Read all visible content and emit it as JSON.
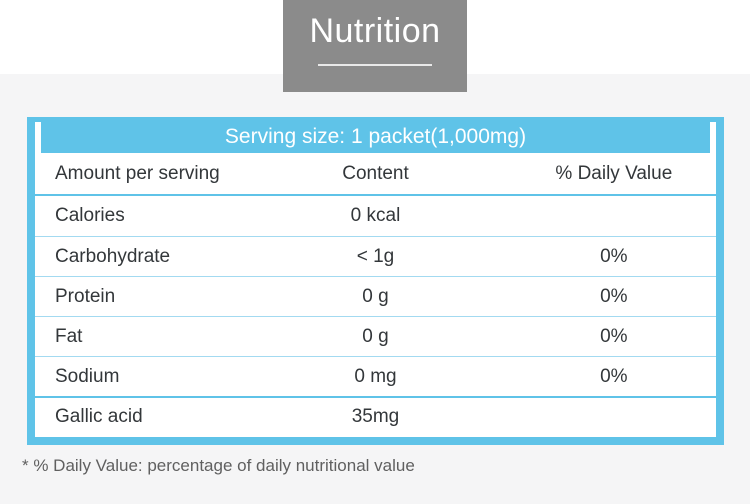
{
  "page": {
    "title": "Nutrition",
    "footnote": "* % Daily Value: percentage of daily nutritional value"
  },
  "table": {
    "serving_line": "Serving size: 1 packet(1,000mg)",
    "columns": {
      "label": "Amount per serving",
      "content": "Content",
      "daily_value": "% Daily Value"
    },
    "rows": [
      {
        "label": "Calories",
        "content": "0 kcal",
        "daily_value": ""
      },
      {
        "label": "Carbohydrate",
        "content": "< 1g",
        "daily_value": "0%"
      },
      {
        "label": "Protein",
        "content": "0 g",
        "daily_value": "0%"
      },
      {
        "label": "Fat",
        "content": "0 g",
        "daily_value": "0%"
      },
      {
        "label": "Sodium",
        "content": "0 mg",
        "daily_value": "0%"
      },
      {
        "label": "Gallic acid",
        "content": "35mg",
        "daily_value": ""
      }
    ]
  },
  "colors": {
    "accent_blue": "#5fc3e8",
    "separator_light_blue": "#a3daf1",
    "title_box_gray": "#8b8b8b",
    "page_background": "#f5f5f6",
    "text_dark": "#33373a"
  }
}
